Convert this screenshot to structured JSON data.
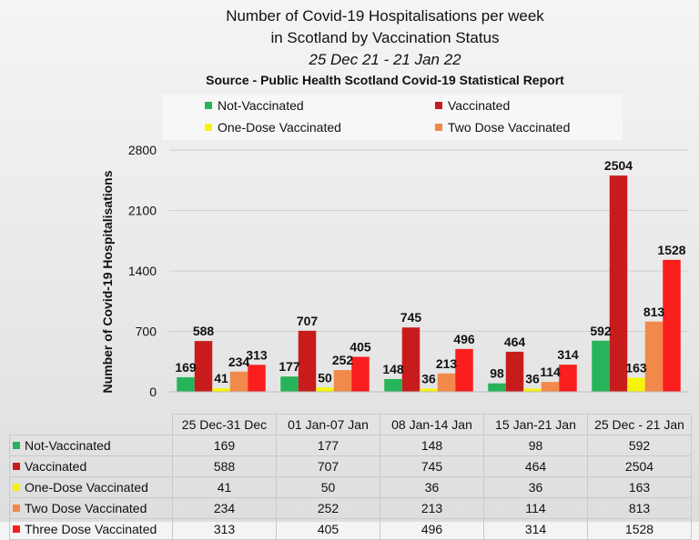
{
  "chart_data": {
    "type": "bar",
    "title": "Number of Covid-19 Hospitalisations per week",
    "title_line2": "in Scotland by Vaccination Status",
    "subtitle": "25 Dec 21 - 21 Jan 22",
    "source": "Source - Public Health Scotland Covid-19 Statistical Report",
    "ylabel": "Number of Covid-19 Hospitalisations",
    "xlabel": "",
    "ylim": [
      0,
      2800
    ],
    "yticks": [
      "0",
      "700",
      "1400",
      "2100",
      "2800"
    ],
    "grid": true,
    "legend_position": "top",
    "categories": [
      "25 Dec-31 Dec",
      "01 Jan-07 Jan",
      "08 Jan-14 Jan",
      "15 Jan-21 Jan",
      "25 Dec - 21 Jan"
    ],
    "series": [
      {
        "name": "Not-Vaccinated",
        "color": "#27b35a",
        "values": [
          169,
          177,
          148,
          98,
          592
        ]
      },
      {
        "name": "Vaccinated",
        "color": "#c81c1c",
        "values": [
          588,
          707,
          745,
          464,
          2504
        ]
      },
      {
        "name": "One-Dose Vaccinated",
        "color": "#f5f50a",
        "values": [
          41,
          50,
          36,
          36,
          163
        ]
      },
      {
        "name": "Two Dose Vaccinated",
        "color": "#f0894a",
        "values": [
          234,
          252,
          213,
          114,
          813
        ]
      },
      {
        "name": "Three Dose Vaccinated",
        "color": "#fb1e1e",
        "values": [
          313,
          405,
          496,
          314,
          1528
        ]
      }
    ]
  }
}
